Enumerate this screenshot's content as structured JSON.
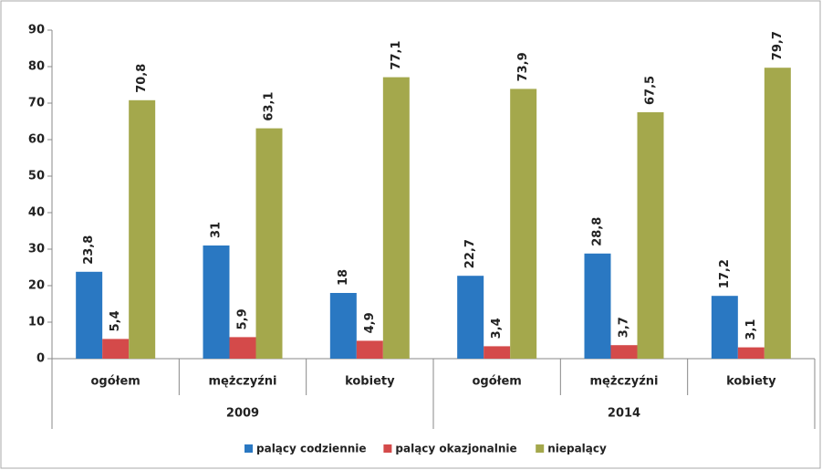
{
  "chart_data": {
    "type": "bar",
    "categories": [
      "ogółem",
      "mężczyźni",
      "kobiety",
      "ogółem",
      "mężczyźni",
      "kobiety"
    ],
    "groups": [
      "2009",
      "2014"
    ],
    "series": [
      {
        "name": "palący codziennie",
        "color": "#2a78c2",
        "values": [
          23.8,
          31,
          18,
          22.7,
          28.8,
          17.2
        ],
        "value_labels": [
          "23,8",
          "31",
          "18",
          "22,7",
          "28,8",
          "17,2"
        ]
      },
      {
        "name": "palący okazjonalnie",
        "color": "#d44a4a",
        "values": [
          5.4,
          5.9,
          4.9,
          3.4,
          3.7,
          3.1
        ],
        "value_labels": [
          "5,4",
          "5,9",
          "4,9",
          "3,4",
          "3,7",
          "3,1"
        ]
      },
      {
        "name": "niepalący",
        "color": "#a4a84c",
        "values": [
          70.8,
          63.1,
          77.1,
          73.9,
          67.5,
          79.7
        ],
        "value_labels": [
          "70,8",
          "63,1",
          "77,1",
          "73,9",
          "67,5",
          "79,7"
        ]
      }
    ],
    "ylim": [
      0,
      90
    ],
    "yticks": [
      0,
      10,
      20,
      30,
      40,
      50,
      60,
      70,
      80,
      90
    ],
    "legend": "bottom"
  }
}
